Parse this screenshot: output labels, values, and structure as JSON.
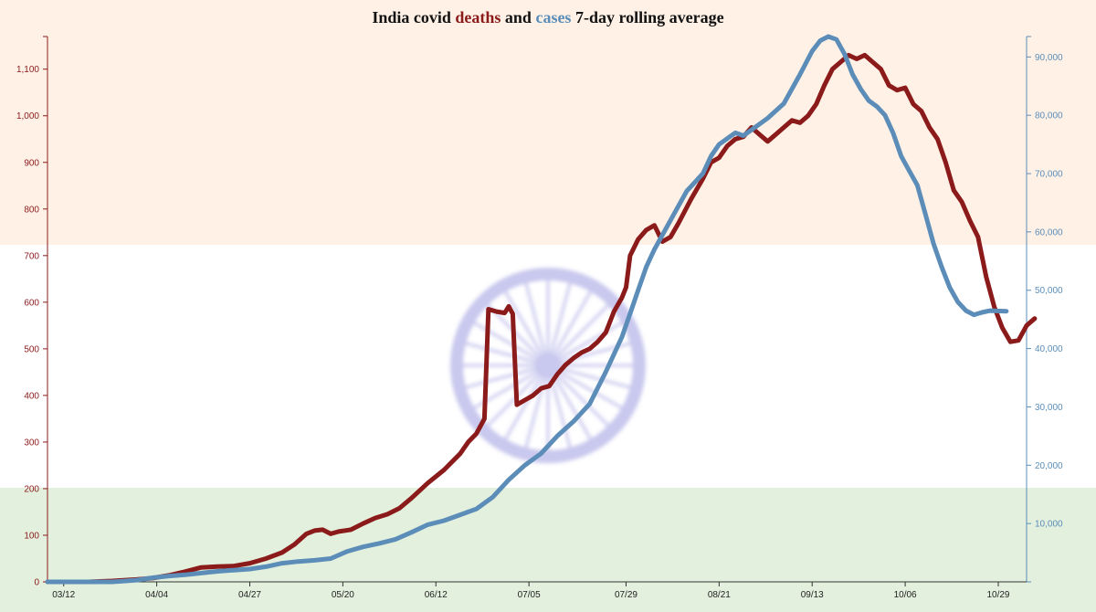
{
  "title": {
    "part1": "India covid ",
    "deaths_word": "deaths",
    "part2": " and ",
    "cases_word": "cases",
    "part3": " 7-day rolling average"
  },
  "colors": {
    "deaths": "#8b1a1a",
    "cases": "#5b8db8",
    "saffron_band": "#fff1e6",
    "green_band": "#e3f0de",
    "chakra": "#c9c8ee",
    "axis_text": "#222222"
  },
  "chart_data": {
    "type": "line",
    "title": "India covid deaths and cases 7-day rolling average",
    "x_tick_labels": [
      "03/12",
      "04/04",
      "04/27",
      "05/20",
      "06/12",
      "07/05",
      "07/29",
      "08/21",
      "09/13",
      "10/06",
      "10/29"
    ],
    "x_tick_day_index": [
      0,
      23,
      46,
      69,
      92,
      115,
      139,
      162,
      185,
      208,
      231
    ],
    "x_range_days": [
      -4,
      238
    ],
    "y_left": {
      "range": [
        0,
        1170
      ],
      "ticks": [
        0,
        100,
        200,
        300,
        400,
        500,
        600,
        700,
        800,
        900,
        1000,
        1100
      ],
      "tick_labels": [
        "0",
        "100",
        "200",
        "300",
        "400",
        "500",
        "600",
        "700",
        "800",
        "900",
        "1,000",
        "1,100"
      ]
    },
    "y_right": {
      "range": [
        0,
        93500
      ],
      "ticks": [
        10000,
        20000,
        30000,
        40000,
        50000,
        60000,
        70000,
        80000,
        90000
      ],
      "tick_labels": [
        "10,000",
        "20,000",
        "30,000",
        "40,000",
        "50,000",
        "60,000",
        "70,000",
        "80,000",
        "90,000"
      ]
    },
    "grid": false,
    "series": [
      {
        "name": "deaths",
        "axis": "left",
        "points": [
          [
            -4,
            0
          ],
          [
            6,
            0
          ],
          [
            12,
            2
          ],
          [
            18,
            5
          ],
          [
            22,
            8
          ],
          [
            26,
            14
          ],
          [
            30,
            22
          ],
          [
            34,
            31
          ],
          [
            38,
            33
          ],
          [
            42,
            34
          ],
          [
            46,
            40
          ],
          [
            50,
            50
          ],
          [
            54,
            63
          ],
          [
            57,
            80
          ],
          [
            60,
            103
          ],
          [
            62,
            110
          ],
          [
            64,
            112
          ],
          [
            66,
            103
          ],
          [
            68,
            108
          ],
          [
            71,
            112
          ],
          [
            74,
            125
          ],
          [
            77,
            137
          ],
          [
            80,
            145
          ],
          [
            83,
            158
          ],
          [
            86,
            180
          ],
          [
            90,
            212
          ],
          [
            94,
            240
          ],
          [
            98,
            275
          ],
          [
            100,
            300
          ],
          [
            102,
            318
          ],
          [
            104,
            350
          ],
          [
            105,
            585
          ],
          [
            107,
            580
          ],
          [
            109,
            577
          ],
          [
            110,
            591
          ],
          [
            111,
            575
          ],
          [
            112,
            380
          ],
          [
            114,
            390
          ],
          [
            116,
            400
          ],
          [
            118,
            415
          ],
          [
            120,
            420
          ],
          [
            122,
            445
          ],
          [
            124,
            465
          ],
          [
            126,
            480
          ],
          [
            128,
            492
          ],
          [
            130,
            500
          ],
          [
            132,
            515
          ],
          [
            134,
            535
          ],
          [
            136,
            580
          ],
          [
            138,
            610
          ],
          [
            139,
            632
          ],
          [
            140,
            700
          ],
          [
            142,
            735
          ],
          [
            144,
            755
          ],
          [
            146,
            765
          ],
          [
            148,
            730
          ],
          [
            150,
            740
          ],
          [
            152,
            770
          ],
          [
            155,
            820
          ],
          [
            158,
            865
          ],
          [
            160,
            900
          ],
          [
            162,
            910
          ],
          [
            164,
            935
          ],
          [
            166,
            950
          ],
          [
            168,
            955
          ],
          [
            170,
            975
          ],
          [
            172,
            960
          ],
          [
            174,
            945
          ],
          [
            176,
            960
          ],
          [
            178,
            975
          ],
          [
            180,
            990
          ],
          [
            182,
            985
          ],
          [
            184,
            1000
          ],
          [
            186,
            1025
          ],
          [
            188,
            1065
          ],
          [
            190,
            1100
          ],
          [
            192,
            1115
          ],
          [
            194,
            1130
          ],
          [
            196,
            1122
          ],
          [
            198,
            1130
          ],
          [
            200,
            1115
          ],
          [
            202,
            1100
          ],
          [
            204,
            1065
          ],
          [
            206,
            1055
          ],
          [
            208,
            1060
          ],
          [
            210,
            1025
          ],
          [
            212,
            1010
          ],
          [
            214,
            975
          ],
          [
            216,
            950
          ],
          [
            218,
            900
          ],
          [
            220,
            840
          ],
          [
            222,
            815
          ],
          [
            224,
            775
          ],
          [
            226,
            740
          ],
          [
            228,
            655
          ],
          [
            230,
            590
          ],
          [
            232,
            545
          ],
          [
            234,
            515
          ],
          [
            236,
            518
          ],
          [
            238,
            550
          ],
          [
            240,
            565
          ]
        ]
      },
      {
        "name": "cases",
        "axis": "right",
        "points": [
          [
            -4,
            0
          ],
          [
            12,
            0
          ],
          [
            18,
            300
          ],
          [
            22,
            700
          ],
          [
            26,
            1000
          ],
          [
            30,
            1200
          ],
          [
            34,
            1500
          ],
          [
            38,
            1800
          ],
          [
            42,
            2000
          ],
          [
            46,
            2200
          ],
          [
            50,
            2600
          ],
          [
            54,
            3200
          ],
          [
            58,
            3500
          ],
          [
            62,
            3700
          ],
          [
            66,
            4000
          ],
          [
            70,
            5200
          ],
          [
            74,
            6000
          ],
          [
            78,
            6600
          ],
          [
            82,
            7300
          ],
          [
            86,
            8500
          ],
          [
            90,
            9800
          ],
          [
            94,
            10500
          ],
          [
            98,
            11500
          ],
          [
            102,
            12500
          ],
          [
            106,
            14500
          ],
          [
            110,
            17500
          ],
          [
            114,
            20000
          ],
          [
            118,
            22000
          ],
          [
            122,
            25000
          ],
          [
            126,
            27500
          ],
          [
            130,
            30500
          ],
          [
            134,
            36000
          ],
          [
            138,
            42000
          ],
          [
            140,
            46000
          ],
          [
            142,
            50000
          ],
          [
            144,
            54000
          ],
          [
            146,
            57000
          ],
          [
            150,
            62000
          ],
          [
            154,
            67000
          ],
          [
            158,
            70000
          ],
          [
            160,
            73000
          ],
          [
            162,
            75000
          ],
          [
            164,
            76000
          ],
          [
            166,
            77000
          ],
          [
            168,
            76500
          ],
          [
            170,
            77500
          ],
          [
            174,
            79500
          ],
          [
            178,
            82000
          ],
          [
            182,
            87000
          ],
          [
            185,
            91000
          ],
          [
            187,
            92800
          ],
          [
            189,
            93500
          ],
          [
            191,
            93000
          ],
          [
            193,
            90500
          ],
          [
            195,
            87000
          ],
          [
            197,
            84500
          ],
          [
            199,
            82500
          ],
          [
            201,
            81500
          ],
          [
            203,
            80000
          ],
          [
            205,
            77000
          ],
          [
            207,
            73000
          ],
          [
            209,
            70500
          ],
          [
            211,
            68000
          ],
          [
            213,
            63000
          ],
          [
            215,
            58000
          ],
          [
            217,
            54000
          ],
          [
            219,
            50500
          ],
          [
            221,
            48000
          ],
          [
            223,
            46500
          ],
          [
            225,
            45800
          ],
          [
            227,
            46200
          ],
          [
            229,
            46500
          ],
          [
            233,
            46400
          ]
        ]
      }
    ]
  }
}
